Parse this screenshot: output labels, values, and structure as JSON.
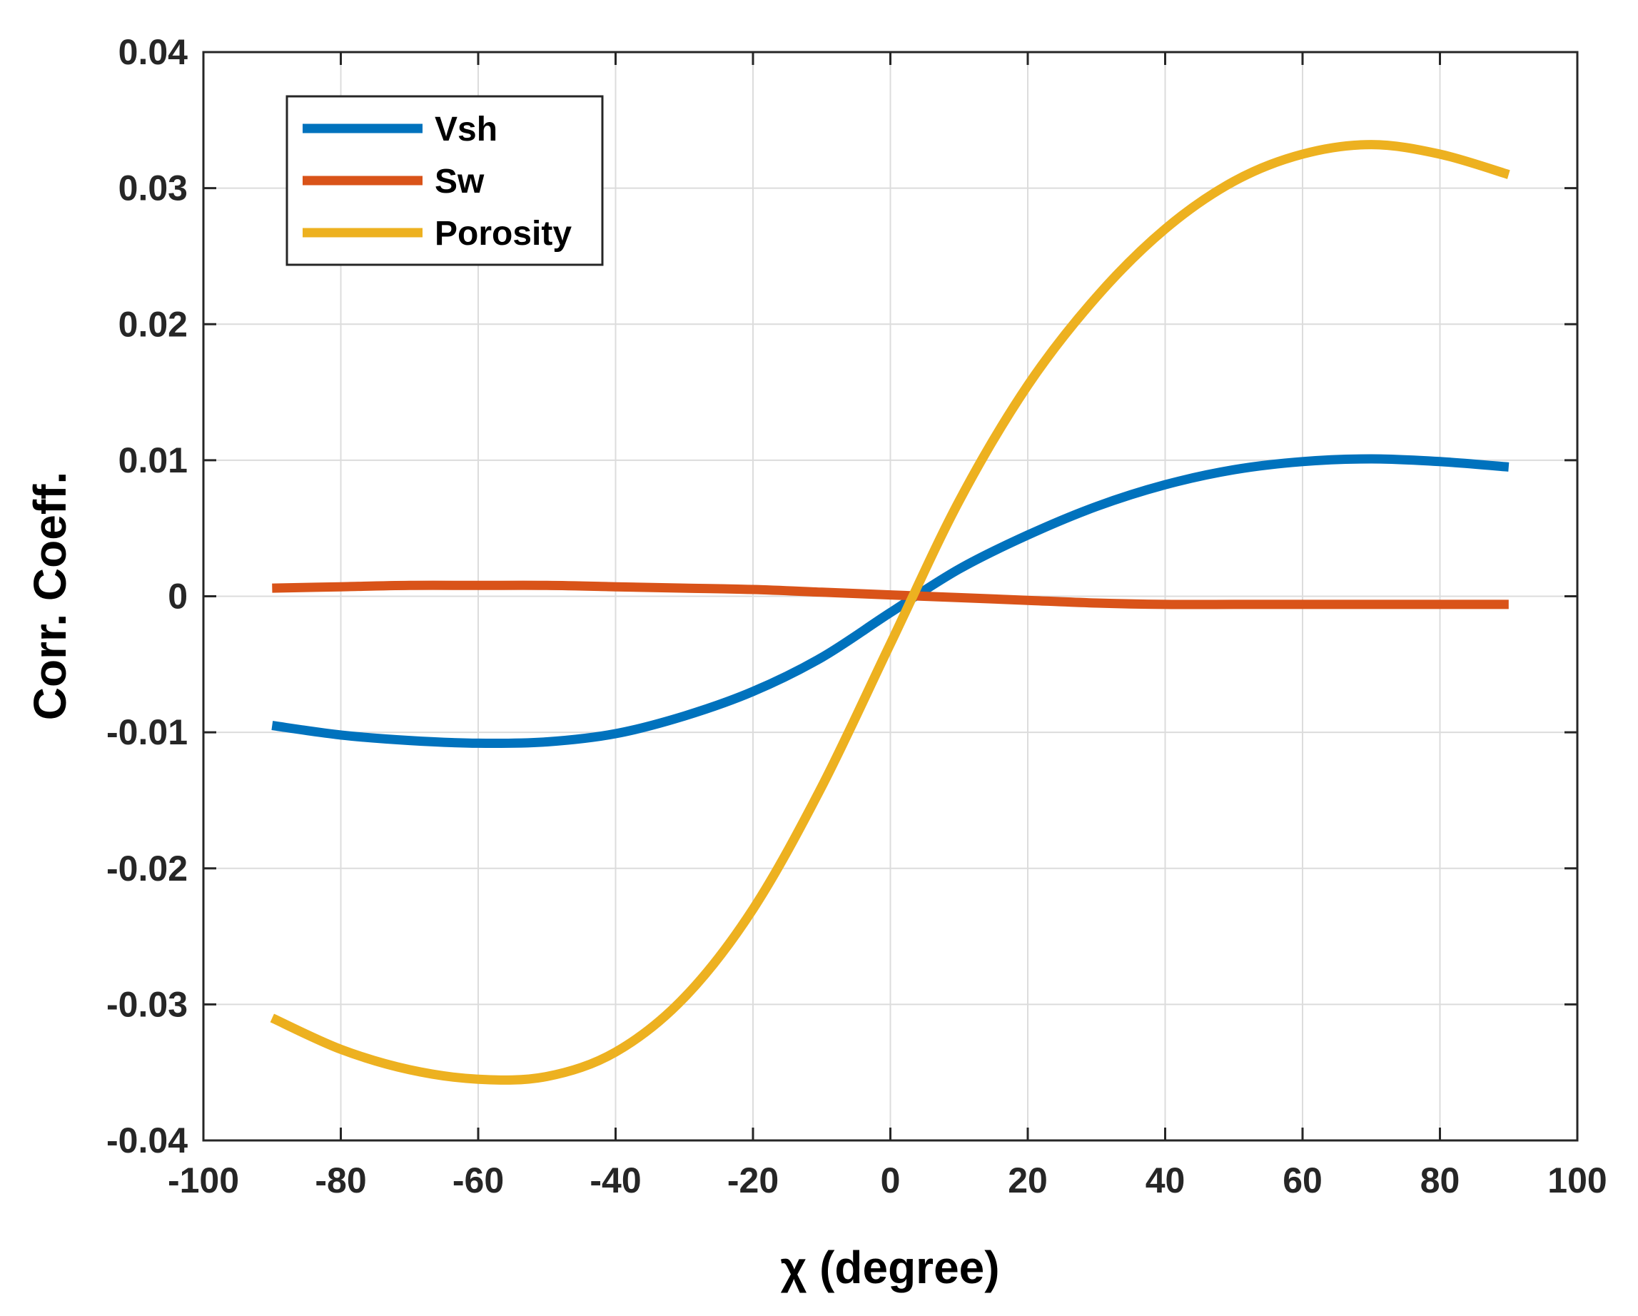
{
  "chart_data": {
    "type": "line",
    "title": "",
    "xlabel": "χ (degree)",
    "ylabel": "Corr. Coeff.",
    "xlim": [
      -100,
      100
    ],
    "ylim": [
      -0.04,
      0.04
    ],
    "xticks": [
      -100,
      -80,
      -60,
      -40,
      -20,
      0,
      20,
      40,
      60,
      80,
      100
    ],
    "yticks": [
      -0.04,
      -0.03,
      -0.02,
      -0.01,
      0,
      0.01,
      0.02,
      0.03,
      0.04
    ],
    "xtick_labels": [
      "-100",
      "-80",
      "-60",
      "-40",
      "-20",
      "0",
      "20",
      "40",
      "60",
      "80",
      "100"
    ],
    "ytick_labels": [
      "-0.04",
      "-0.03",
      "-0.02",
      "-0.01",
      "0",
      "0.01",
      "0.02",
      "0.03",
      "0.04"
    ],
    "grid": true,
    "legend_position": "top-left",
    "x": [
      -90,
      -80,
      -70,
      -60,
      -50,
      -40,
      -30,
      -20,
      -10,
      0,
      10,
      20,
      30,
      40,
      50,
      60,
      70,
      80,
      90
    ],
    "series": [
      {
        "name": "Vsh",
        "color": "#0072BD",
        "values": [
          -0.0095,
          -0.0102,
          -0.0106,
          -0.0108,
          -0.0107,
          -0.0101,
          -0.0088,
          -0.007,
          -0.0045,
          -0.0012,
          0.002,
          0.0045,
          0.0066,
          0.0082,
          0.0093,
          0.0099,
          0.0101,
          0.0099,
          0.0095
        ]
      },
      {
        "name": "Sw",
        "color": "#D95319",
        "values": [
          0.0006,
          0.0007,
          0.0008,
          0.0008,
          0.0008,
          0.0007,
          0.0006,
          0.0005,
          0.0003,
          0.0001,
          -0.0001,
          -0.0003,
          -0.0005,
          -0.0006,
          -0.0006,
          -0.0006,
          -0.0006,
          -0.0006,
          -0.0006
        ]
      },
      {
        "name": "Porosity",
        "color": "#EDB120",
        "values": [
          -0.031,
          -0.0333,
          -0.0348,
          -0.0355,
          -0.0353,
          -0.0335,
          -0.0295,
          -0.023,
          -0.014,
          -0.0035,
          0.007,
          0.0155,
          0.022,
          0.027,
          0.0305,
          0.0325,
          0.0332,
          0.0325,
          0.031
        ]
      }
    ]
  }
}
